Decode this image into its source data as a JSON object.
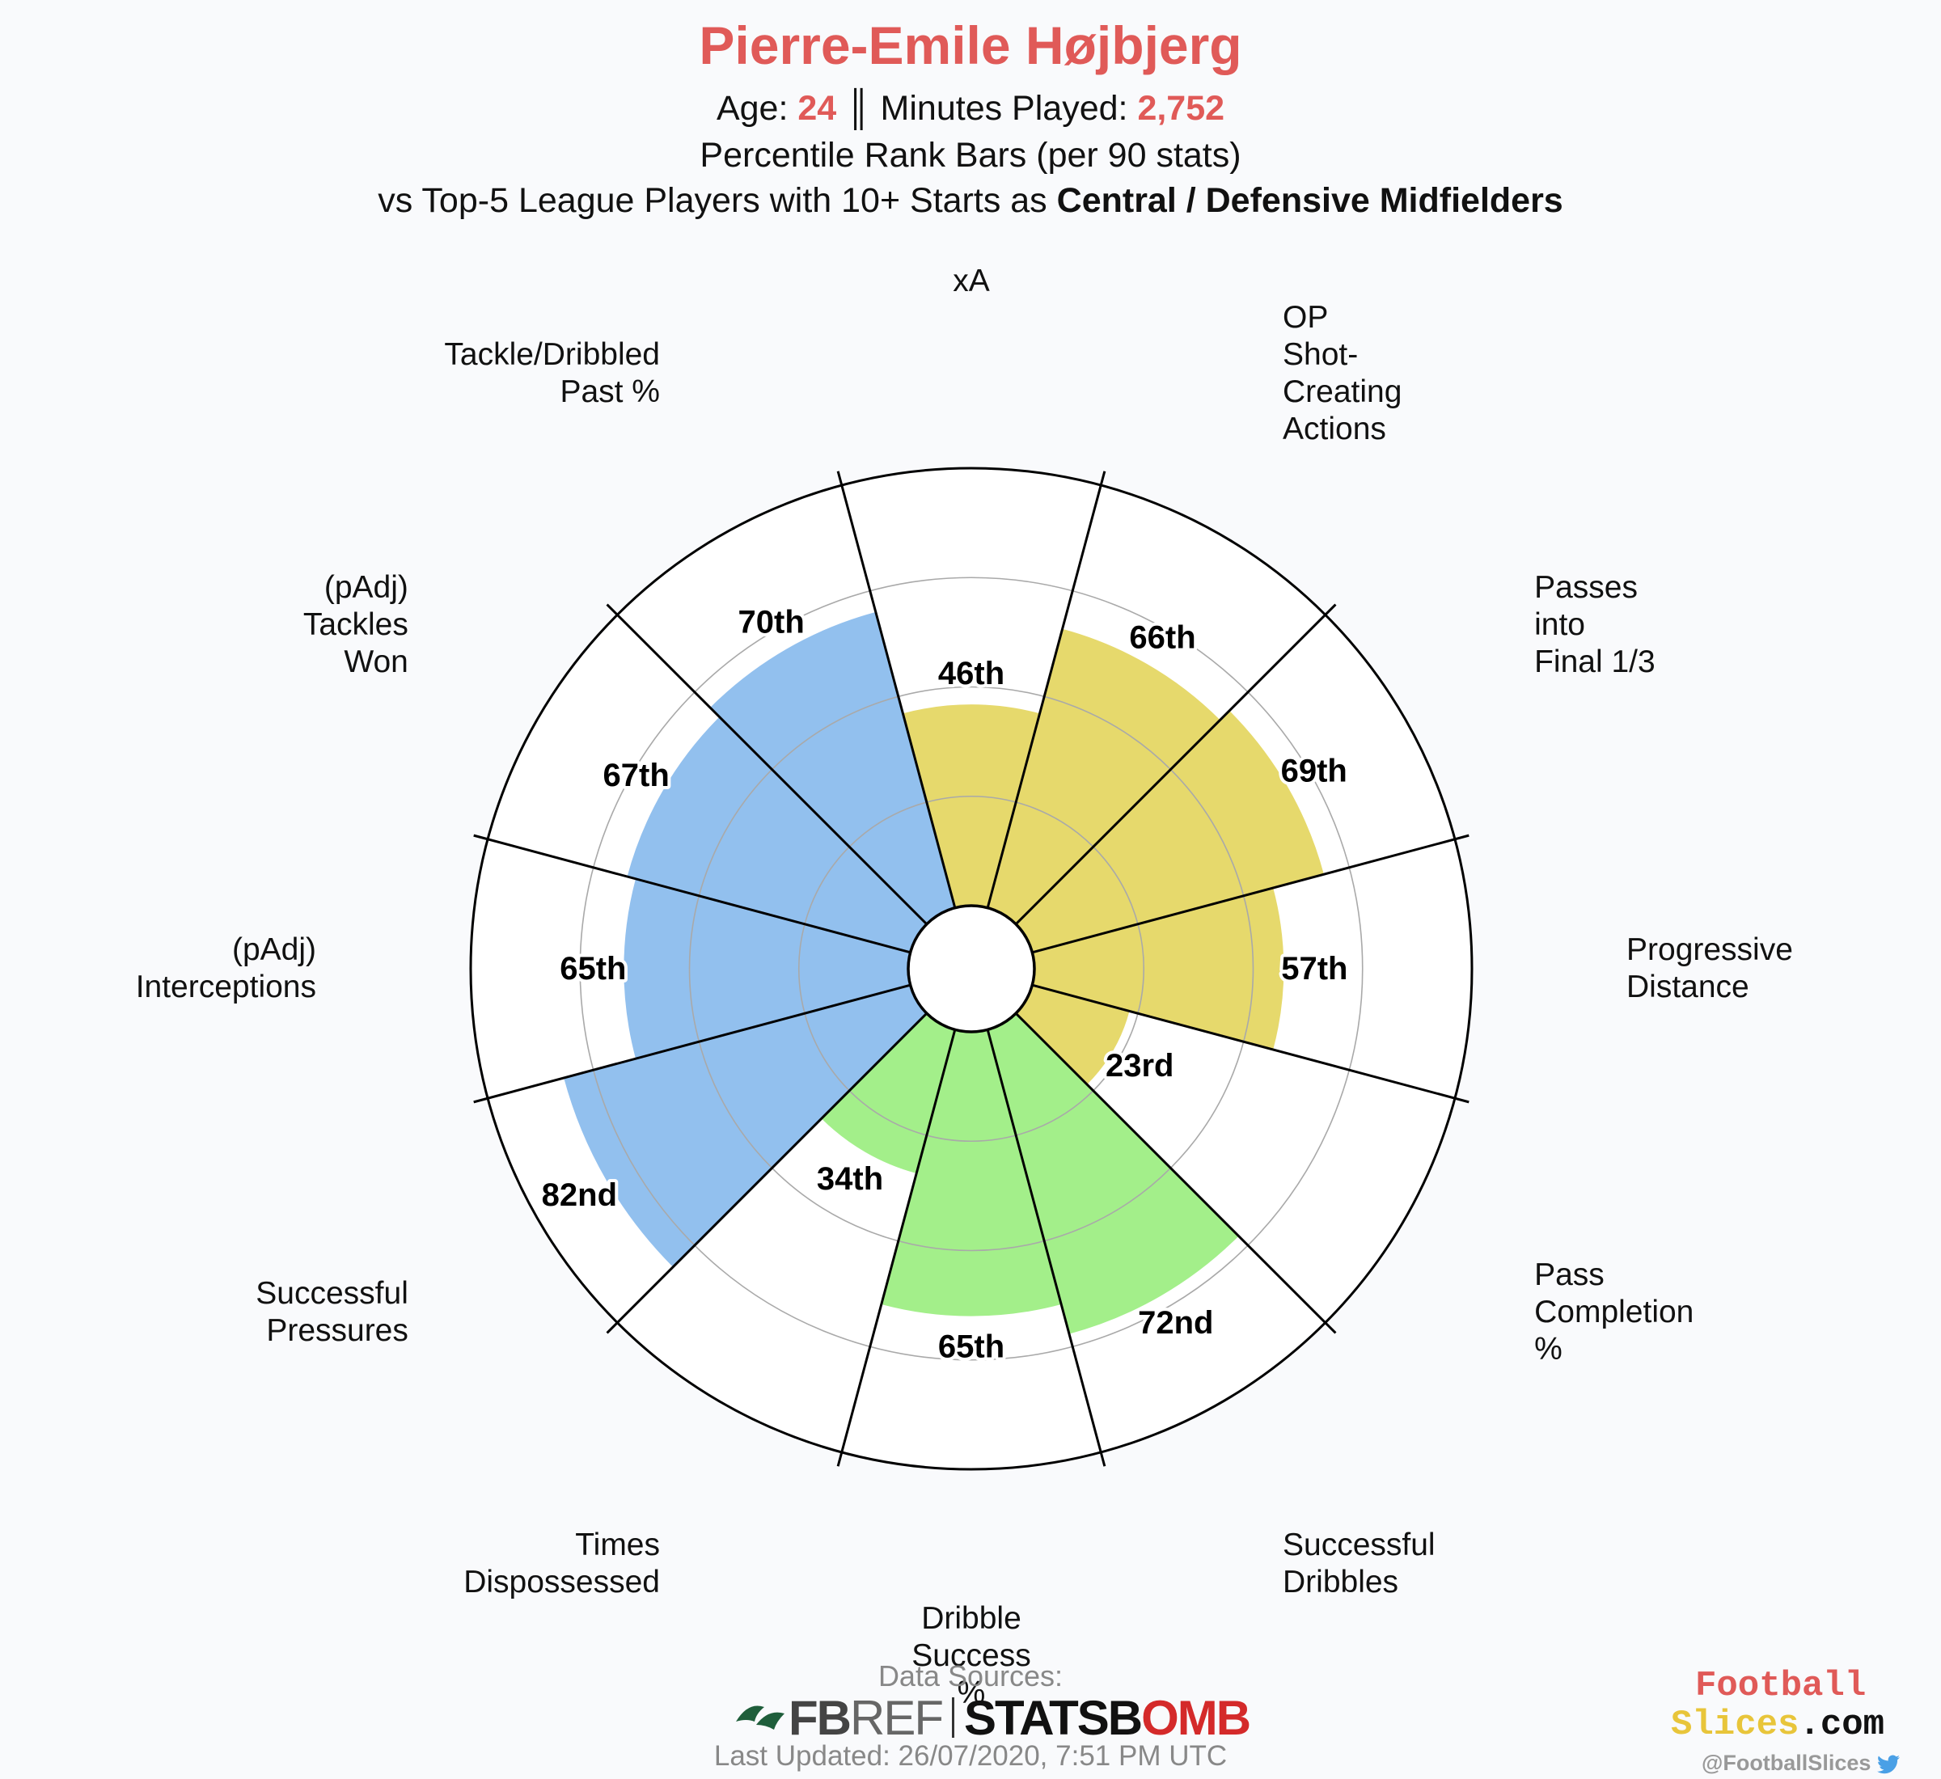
{
  "header": {
    "title": "Pierre-Emile Højbjerg",
    "age_label": "Age: ",
    "age": "24",
    "sep": " ║ ",
    "minutes_label": "Minutes Played: ",
    "minutes": "2,752",
    "subtitle": "Percentile Rank Bars (per 90 stats)",
    "comparison_prefix": "vs Top-5 League Players with 10+ Starts as ",
    "comparison_bold": "Central / Defensive Midfielders"
  },
  "chart_data": {
    "type": "polar-bar",
    "rmax": 100,
    "gridlines": [
      25,
      50,
      75
    ],
    "categories": [
      "xA",
      "OP\nShot-\nCreating\nActions",
      "Passes\ninto\nFinal 1/3",
      "Progressive\nDistance",
      "Pass\nCompletion\n%",
      "Successful\nDribbles",
      "Dribble\nSuccess\n%",
      "Times\nDispossessed",
      "Successful\nPressures",
      "(pAdj)\nInterceptions",
      "(pAdj)\nTackles\nWon",
      "Tackle/Dribbled\nPast %"
    ],
    "values": [
      46,
      66,
      69,
      57,
      23,
      72,
      65,
      34,
      82,
      65,
      67,
      70
    ],
    "value_labels": [
      "46th",
      "66th",
      "69th",
      "57th",
      "23rd",
      "72nd",
      "65th",
      "34th",
      "82nd",
      "65th",
      "67th",
      "70th"
    ],
    "groups": [
      "attacking",
      "attacking",
      "attacking",
      "attacking",
      "attacking",
      "possession",
      "possession",
      "possession",
      "defending",
      "defending",
      "defending",
      "defending"
    ],
    "colors": {
      "attacking": "#e6d96c",
      "possession": "#a3ef8a",
      "defending": "#92c0ee"
    }
  },
  "footer": {
    "sources_label": "Data Sources:",
    "fbref_fb": "FB",
    "fbref_ref": "REF",
    "statsbomb_a": "STATSB",
    "statsbomb_b": "O",
    "statsbomb_c": "MB",
    "updated": "Last Updated: 26/07/2020, 7:51 PM UTC",
    "brand_line1": "Football",
    "brand_line2a": "Slices",
    "brand_line2b": ".com",
    "handle": "@FootballSlices"
  }
}
